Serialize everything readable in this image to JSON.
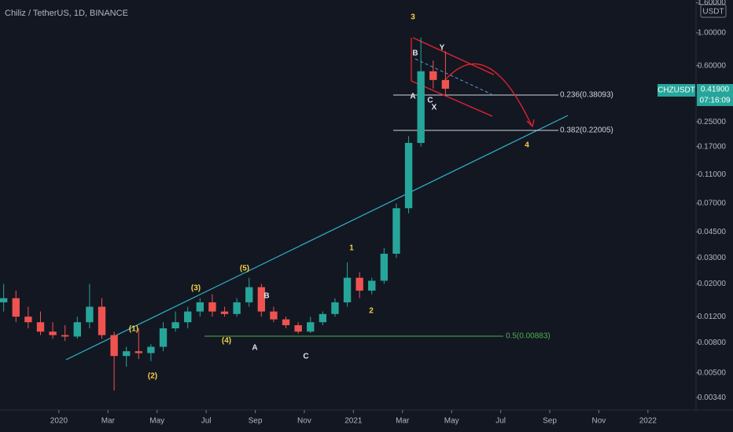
{
  "chart_data": {
    "type": "candlestick",
    "title": "Chiliz / TetherUS, 1D, BINANCE",
    "currency": "USDT",
    "log_scale": true,
    "grid": false,
    "up_color": "#26a69a",
    "down_color": "#ef5350",
    "xlim": [
      -2.4,
      25.96
    ],
    "xticks": [
      {
        "value": 0,
        "label": "2020"
      },
      {
        "value": 2,
        "label": "Mar"
      },
      {
        "value": 4,
        "label": "May"
      },
      {
        "value": 6,
        "label": "Jul"
      },
      {
        "value": 8,
        "label": "Sep"
      },
      {
        "value": 10,
        "label": "Nov"
      },
      {
        "value": 12,
        "label": "2021"
      },
      {
        "value": 14,
        "label": "Mar"
      },
      {
        "value": 16,
        "label": "May"
      },
      {
        "value": 18,
        "label": "Jul"
      },
      {
        "value": 20,
        "label": "Sep"
      },
      {
        "value": 22,
        "label": "Nov"
      },
      {
        "value": 24,
        "label": "2022"
      }
    ],
    "ylim": [
      0.0028,
      1.67
    ],
    "yticks": [
      {
        "value": 1.6,
        "label": "1.60000"
      },
      {
        "value": 1.0,
        "label": "1.00000"
      },
      {
        "value": 0.6,
        "label": "0.60000"
      },
      {
        "value": 0.25,
        "label": "0.25000"
      },
      {
        "value": 0.17,
        "label": "0.17000"
      },
      {
        "value": 0.11,
        "label": "0.11000"
      },
      {
        "value": 0.07,
        "label": "0.07000"
      },
      {
        "value": 0.045,
        "label": "0.04500"
      },
      {
        "value": 0.03,
        "label": "0.03000"
      },
      {
        "value": 0.02,
        "label": "0.02000"
      },
      {
        "value": 0.012,
        "label": "0.01200"
      },
      {
        "value": 0.008,
        "label": "0.00800"
      },
      {
        "value": 0.005,
        "label": "0.00500"
      },
      {
        "value": 0.0034,
        "label": "0.00340"
      }
    ],
    "x": [
      -2.25,
      -1.75,
      -1.25,
      -0.75,
      -0.25,
      0.25,
      0.75,
      1.25,
      1.75,
      2.25,
      2.75,
      3.25,
      3.75,
      4.25,
      4.75,
      5.25,
      5.75,
      6.25,
      6.75,
      7.25,
      7.75,
      8.25,
      8.75,
      9.25,
      9.75,
      10.25,
      10.75,
      11.25,
      11.75,
      12.25,
      12.75,
      13.25,
      13.75,
      14.25,
      14.75,
      15.25,
      15.75
    ],
    "open": [
      0.015,
      0.016,
      0.012,
      0.011,
      0.0095,
      0.009,
      0.0088,
      0.011,
      0.014,
      0.009,
      0.0065,
      0.007,
      0.0068,
      0.0075,
      0.01,
      0.011,
      0.013,
      0.015,
      0.013,
      0.0125,
      0.015,
      0.019,
      0.013,
      0.0115,
      0.0105,
      0.0095,
      0.011,
      0.0125,
      0.015,
      0.022,
      0.018,
      0.021,
      0.032,
      0.065,
      0.18,
      0.55,
      0.48
    ],
    "high": [
      0.02,
      0.018,
      0.014,
      0.013,
      0.011,
      0.0105,
      0.012,
      0.02,
      0.016,
      0.0095,
      0.0075,
      0.01,
      0.0078,
      0.011,
      0.013,
      0.014,
      0.016,
      0.017,
      0.014,
      0.016,
      0.022,
      0.02,
      0.014,
      0.012,
      0.011,
      0.012,
      0.013,
      0.016,
      0.028,
      0.024,
      0.022,
      0.035,
      0.07,
      0.2,
      0.93,
      0.65,
      0.75
    ],
    "low": [
      0.013,
      0.011,
      0.01,
      0.009,
      0.0085,
      0.0082,
      0.0085,
      0.01,
      0.0085,
      0.0038,
      0.0055,
      0.0062,
      0.006,
      0.007,
      0.0095,
      0.01,
      0.012,
      0.012,
      0.012,
      0.012,
      0.014,
      0.012,
      0.011,
      0.01,
      0.0092,
      0.0093,
      0.0105,
      0.012,
      0.014,
      0.016,
      0.017,
      0.02,
      0.03,
      0.06,
      0.17,
      0.42,
      0.38
    ],
    "close": [
      0.016,
      0.012,
      0.011,
      0.0095,
      0.009,
      0.0088,
      0.011,
      0.014,
      0.009,
      0.0065,
      0.007,
      0.0068,
      0.0075,
      0.01,
      0.011,
      0.013,
      0.015,
      0.013,
      0.0125,
      0.015,
      0.019,
      0.013,
      0.0115,
      0.0105,
      0.0095,
      0.011,
      0.0125,
      0.015,
      0.022,
      0.018,
      0.021,
      0.032,
      0.065,
      0.18,
      0.55,
      0.48,
      0.419
    ],
    "price_tag": {
      "symbol": "CHZUSDT",
      "price": "0.41900",
      "countdown": "07:16:09"
    },
    "fib_labels": [
      "0.236(0.38093)",
      "0.382(0.22005)",
      "0.5(0.00883)"
    ],
    "annotations": [
      "3",
      "B",
      "Y",
      "A",
      "C",
      "X",
      "4",
      "1",
      "2",
      "(5)",
      "B",
      "(3)",
      "(1)",
      "(4)",
      "(2)",
      "A",
      "C"
    ]
  }
}
